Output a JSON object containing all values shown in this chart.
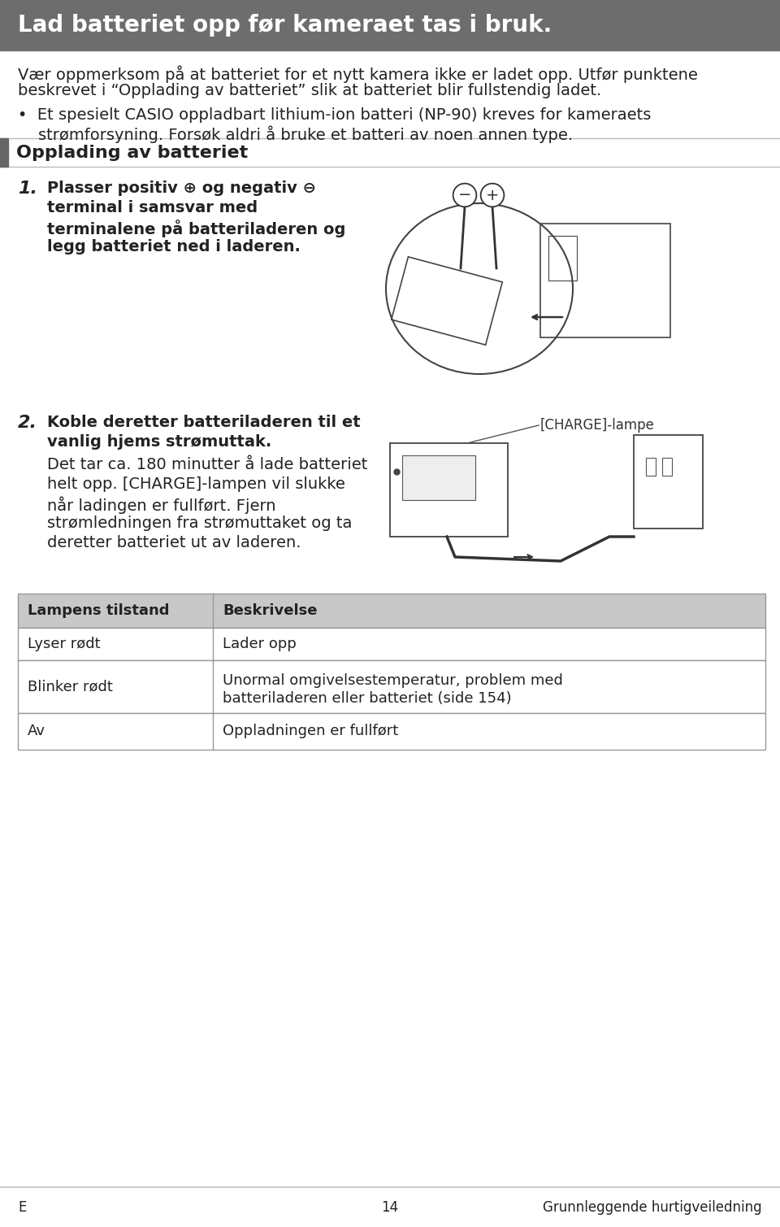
{
  "bg_color": "#ffffff",
  "header_bg": "#6d6d6d",
  "header_text": "Lad batteriet opp før kameraet tas i bruk.",
  "header_text_color": "#ffffff",
  "section_header_text": "Opplading av batteriet",
  "para1_line1": "Vær oppmerksom på at batteriet for et nytt kamera ikke er ladet opp. Utfør punktene",
  "para1_line2": "beskrevet i “Opplading av batteriet” slik at batteriet blir fullstendig ladet.",
  "bullet_line1": "•  Et spesielt CASIO oppladbart lithium-ion batteri (NP-90) kreves for kameraets",
  "bullet_line2": "    strømforsyning. Forsøk aldri å bruke et batteri av noen annen type.",
  "step1_num": "1.",
  "step1_bold1": "Plasser positiv ⊕ og negativ ⊖",
  "step1_bold2": "terminal i samsvar med",
  "step1_bold3": "terminalene på batteriladeren og",
  "step1_bold4": "legg batteriet ned i laderen.",
  "step2_num": "2.",
  "step2_bold1": "Koble deretter batteriladeren til et",
  "step2_bold2": "vanlig hjems strømuttak.",
  "step2_normal1": "Det tar ca. 180 minutter å lade batteriet",
  "step2_normal2": "helt opp. [CHARGE]-lampen vil slukke",
  "step2_normal3": "når ladingen er fullført. Fjern",
  "step2_normal4": "strømledningen fra strømuttaket og ta",
  "step2_normal5": "deretter batteriet ut av laderen.",
  "charge_label": "[CHARGE]-lampe",
  "table_header_col1": "Lampens tilstand",
  "table_header_col2": "Beskrivelse",
  "table_row1_col1": "Lyser rødt",
  "table_row1_col2": "Lader opp",
  "table_row2_col1": "Blinker rødt",
  "table_row2_col2_line1": "Unormal omgivelsestemperatur, problem med",
  "table_row2_col2_line2": "batteriladeren eller batteriet (side 154)",
  "table_row3_col1": "Av",
  "table_row3_col2": "Oppladningen er fullført",
  "footer_left": "E",
  "footer_center": "14",
  "footer_right": "Grunnleggende hurtigveiledning",
  "table_header_bg": "#c8c8c8",
  "table_border_color": "#999999",
  "text_color": "#222222",
  "font_size_header": 20,
  "font_size_body": 14,
  "font_size_step_bold": 14,
  "font_size_section": 16,
  "font_size_table": 13,
  "font_size_footer": 12
}
